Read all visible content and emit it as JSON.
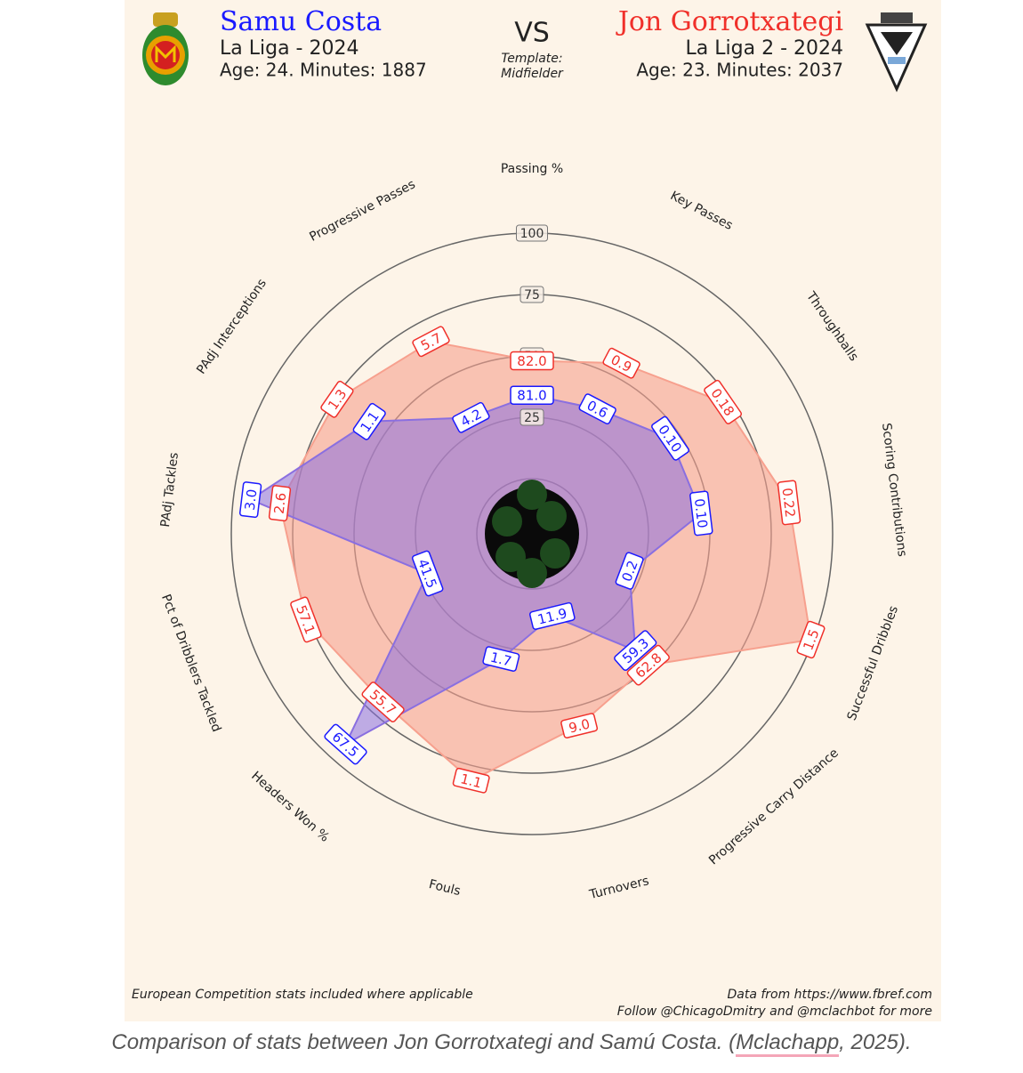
{
  "header": {
    "left_league": "La Liga - 2024",
    "left_info": "Age: 24. Minutes: 1887",
    "vs": "VS",
    "template_label": "Template:",
    "template": "Midfielder",
    "right_league": "La Liga 2 - 2024",
    "right_info": "Age: 23. Minutes: 2037"
  },
  "chart_data": {
    "type": "radar",
    "categories": [
      "Passing %",
      "Key Passes",
      "Throughballs",
      "Scoring Contributions",
      "Successful Dribbles",
      "Progressive Carry Distance",
      "Turnovers",
      "Fouls",
      "Headers Won %",
      "Pct of Dribblers Tackled",
      "PAdj Tackles",
      "PAdj Interceptions",
      "Progressive Passes"
    ],
    "series": [
      {
        "name": "Jon Gorrotxategi",
        "color": "#f0302a",
        "fill": "#f7a08e",
        "values": [
          48,
          56,
          72,
          83,
          99,
          49,
          58,
          81,
          69,
          76,
          81,
          74,
          66
        ],
        "stat_labels": [
          "82.0",
          "0.9",
          "0.18",
          "0.22",
          "1.5",
          "62.8",
          "9.0",
          "1.1",
          "55.7",
          "57.1",
          "2.6",
          "1.3",
          "5.7"
        ]
      },
      {
        "name": "Samu Costa",
        "color": "#1a1aff",
        "fill": "#8a6fe0",
        "values": [
          34,
          35,
          46,
          47,
          20,
          41,
          12,
          30,
          92,
          23,
          93,
          58,
          31
        ],
        "stat_labels": [
          "81.0",
          "0.6",
          "0.10",
          "0.10",
          "0.2",
          "59.3",
          "11.9",
          "1.7",
          "67.5",
          "41.5",
          "3.0",
          "1.1",
          "4.2"
        ]
      }
    ],
    "ylim": [
      0,
      100
    ],
    "yticks": [
      25,
      50,
      75,
      100
    ],
    "grid": true
  },
  "footer": {
    "note": "European Competition stats included where applicable",
    "source": "Data from https://www.fbref.com",
    "follow": "Follow @ChicagoDmitry and @mclachbot for more"
  },
  "caption": {
    "before": "Comparison of stats between Jon Gorrotxategi and Samú Costa. (",
    "link": "Mclachapp",
    "after": ", 2025)."
  }
}
